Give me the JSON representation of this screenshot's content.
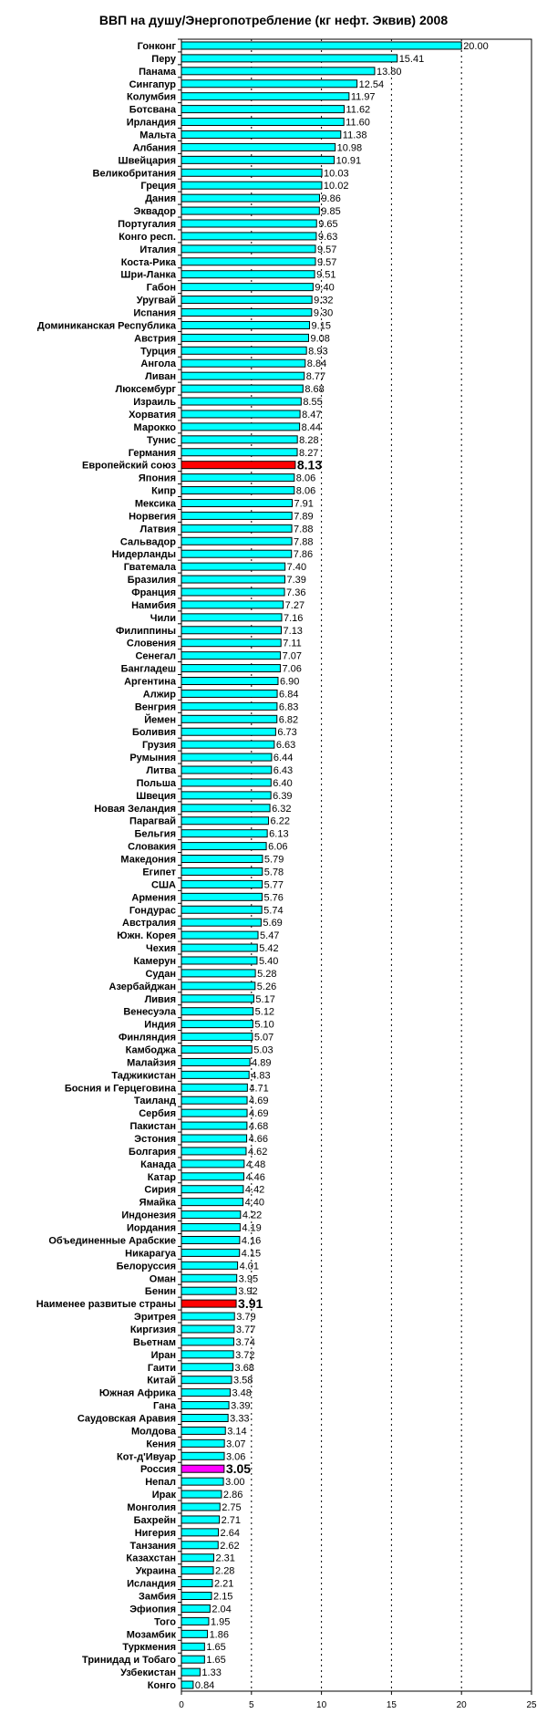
{
  "chart_data": {
    "type": "bar",
    "orientation": "horizontal",
    "title": "ВВП на душу/Энергопотребление (кг нефт. Эквив) 2008",
    "xlabel": "",
    "ylabel": "",
    "xlim": [
      0,
      25
    ],
    "x_ticks": [
      "0",
      "5",
      "10",
      "15",
      "20",
      "25"
    ],
    "grid": "vertical dashed",
    "colors": {
      "default": "#00FFFF",
      "highlight": "#FF0000",
      "russia": "#FF00FF"
    },
    "categories": [
      "Гонконг",
      "Перу",
      "Панама",
      "Сингапур",
      "Колумбия",
      "Ботсвана",
      "Ирландия",
      "Мальта",
      "Албания",
      "Швейцария",
      "Великобритания",
      "Греция",
      "Дания",
      "Эквадор",
      "Португалия",
      "Конго респ.",
      "Италия",
      "Коста-Рика",
      "Шри-Ланка",
      "Габон",
      "Уругвай",
      "Испания",
      "Доминиканская Республика",
      "Австрия",
      "Турция",
      "Ангола",
      "Ливан",
      "Люксембург",
      "Израиль",
      "Хорватия",
      "Марокко",
      "Тунис",
      "Германия",
      "Европейский союз",
      "Япония",
      "Кипр",
      "Мексика",
      "Норвегия",
      "Латвия",
      "Сальвадор",
      "Нидерланды",
      "Гватемала",
      "Бразилия",
      "Франция",
      "Намибия",
      "Чили",
      "Филиппины",
      "Словения",
      "Сенегал",
      "Бангладеш",
      "Аргентина",
      "Алжир",
      "Венгрия",
      "Йемен",
      "Боливия",
      "Грузия",
      "Румыния",
      "Литва",
      "Польша",
      "Швеция",
      "Новая Зеландия",
      "Парагвай",
      "Бельгия",
      "Словакия",
      "Македония",
      "Египет",
      "США",
      "Армения",
      "Гондурас",
      "Австралия",
      "Южн. Корея",
      "Чехия",
      "Камерун",
      "Судан",
      "Азербайджан",
      "Ливия",
      "Венесуэла",
      "Индия",
      "Финляндия",
      "Камбоджа",
      "Малайзия",
      "Таджикистан",
      "Босния и Герцеговина",
      "Таиланд",
      "Сербия",
      "Пакистан",
      "Эстония",
      "Болгария",
      "Канада",
      "Катар",
      "Сирия",
      "Ямайка",
      "Индонезия",
      "Иордания",
      "Объединенные Арабские",
      "Никарагуа",
      "Белоруссия",
      "Оман",
      "Бенин",
      "Наименее развитые страны",
      "Эритрея",
      "Киргизия",
      "Вьетнам",
      "Иран",
      "Гаити",
      "Китай",
      "Южная Африка",
      "Гана",
      "Саудовская Аравия",
      "Молдова",
      "Кения",
      "Кот-д'Ивуар",
      "Россия",
      "Непал",
      "Ирак",
      "Монголия",
      "Бахрейн",
      "Нигерия",
      "Танзания",
      "Казахстан",
      "Украина",
      "Исландия",
      "Замбия",
      "Эфиопия",
      "Того",
      "Мозамбик",
      "Туркмения",
      "Тринидад и Тобаго",
      "Узбекистан",
      "Конго"
    ],
    "values": [
      20.0,
      15.41,
      13.8,
      12.54,
      11.97,
      11.62,
      11.6,
      11.38,
      10.98,
      10.91,
      10.03,
      10.02,
      9.86,
      9.85,
      9.65,
      9.63,
      9.57,
      9.57,
      9.51,
      9.4,
      9.32,
      9.3,
      9.15,
      9.08,
      8.93,
      8.84,
      8.77,
      8.68,
      8.55,
      8.47,
      8.44,
      8.28,
      8.27,
      8.13,
      8.06,
      8.06,
      7.91,
      7.89,
      7.88,
      7.88,
      7.86,
      7.4,
      7.39,
      7.36,
      7.27,
      7.16,
      7.13,
      7.11,
      7.07,
      7.06,
      6.9,
      6.84,
      6.83,
      6.82,
      6.73,
      6.63,
      6.44,
      6.43,
      6.4,
      6.39,
      6.32,
      6.22,
      6.13,
      6.06,
      5.79,
      5.78,
      5.77,
      5.76,
      5.74,
      5.69,
      5.47,
      5.42,
      5.4,
      5.28,
      5.26,
      5.17,
      5.12,
      5.1,
      5.07,
      5.03,
      4.89,
      4.83,
      4.71,
      4.69,
      4.69,
      4.68,
      4.66,
      4.62,
      4.48,
      4.46,
      4.42,
      4.4,
      4.22,
      4.19,
      4.16,
      4.15,
      4.01,
      3.95,
      3.92,
      3.91,
      3.79,
      3.77,
      3.74,
      3.72,
      3.68,
      3.58,
      3.48,
      3.39,
      3.33,
      3.14,
      3.07,
      3.06,
      3.05,
      3.0,
      2.86,
      2.75,
      2.71,
      2.64,
      2.62,
      2.31,
      2.28,
      2.21,
      2.15,
      2.04,
      1.95,
      1.86,
      1.65,
      1.65,
      1.33,
      0.84
    ],
    "value_labels": [
      "20.00",
      "15.41",
      "13.80",
      "12.54",
      "11.97",
      "11.62",
      "11.60",
      "11.38",
      "10.98",
      "10.91",
      "10.03",
      "10.02",
      "9.86",
      "9.85",
      "9.65",
      "9.63",
      "9.57",
      "9.57",
      "9.51",
      "9.40",
      "9.32",
      "9.30",
      "9.15",
      "9.08",
      "8.93",
      "8.84",
      "8.77",
      "8.68",
      "8.55",
      "8.47",
      "8.44",
      "8.28",
      "8.27",
      "8.13",
      "8.06",
      "8.06",
      "7.91",
      "7.89",
      "7.88",
      "7.88",
      "7.86",
      "7.40",
      "7.39",
      "7.36",
      "7.27",
      "7.16",
      "7.13",
      "7.11",
      "7.07",
      "7.06",
      "6.90",
      "6.84",
      "6.83",
      "6.82",
      "6.73",
      "6.63",
      "6.44",
      "6.43",
      "6.40",
      "6.39",
      "6.32",
      "6.22",
      "6.13",
      "6.06",
      "5.79",
      "5.78",
      "5.77",
      "5.76",
      "5.74",
      "5.69",
      "5.47",
      "5.42",
      "5.40",
      "5.28",
      "5.26",
      "5.17",
      "5.12",
      "5.10",
      "5.07",
      "5.03",
      "4.89",
      "4.83",
      "4.71",
      "4.69",
      "4.69",
      "4.68",
      "4.66",
      "4.62",
      "4.48",
      "4.46",
      "4.42",
      "4.40",
      "4.22",
      "4.19",
      "4.16",
      "4.15",
      "4.01",
      "3.95",
      "3.92",
      "3.91",
      "3.79",
      "3.77",
      "3.74",
      "3.72",
      "3.68",
      "3.58",
      "3.48",
      "3.39",
      "3.33",
      "3.14",
      "3.07",
      "3.06",
      "3.05",
      "3.00",
      "2.86",
      "2.75",
      "2.71",
      "2.64",
      "2.62",
      "2.31",
      "2.28",
      "2.21",
      "2.15",
      "2.04",
      "1.95",
      "1.86",
      "1.65",
      "1.65",
      "1.33",
      "0.84"
    ],
    "highlighted": {
      "Европейский союз": "highlight",
      "Наименее развитые страны": "highlight",
      "Россия": "russia"
    }
  }
}
